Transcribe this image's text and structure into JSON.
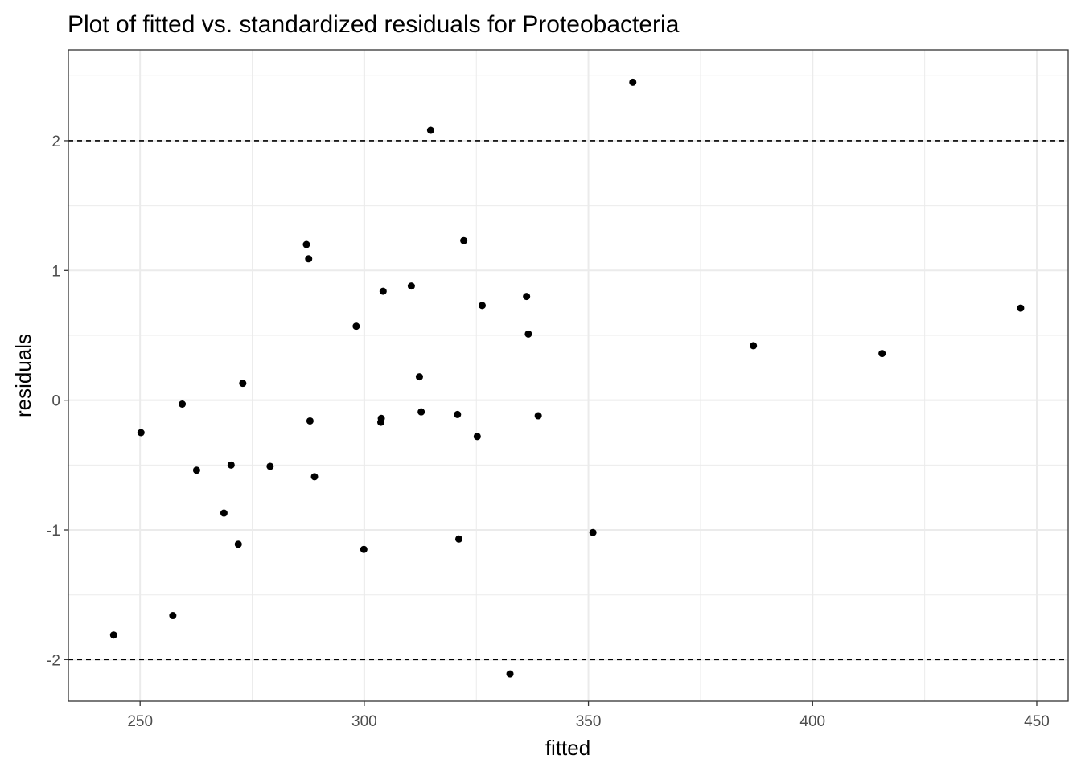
{
  "chart_data": {
    "type": "scatter",
    "title": "Plot of fitted vs. standardized residuals for Proteobacteria",
    "xlabel": "fitted",
    "ylabel": "residuals",
    "xlim": [
      234,
      457
    ],
    "ylim": [
      -2.32,
      2.7
    ],
    "x_ticks": [
      250,
      300,
      350,
      400,
      450
    ],
    "x_tick_labels": [
      "250",
      "300",
      "350",
      "400",
      "450"
    ],
    "y_ticks": [
      -2,
      -1,
      0,
      1,
      2
    ],
    "y_tick_labels": [
      "-2",
      "-1",
      "0",
      "1",
      "2"
    ],
    "x_minor_ticks": [
      275,
      325,
      375,
      425
    ],
    "y_minor_ticks": [
      -1.5,
      -0.5,
      0.5,
      1.5,
      2.5
    ],
    "grid": true,
    "reference_lines": [
      2,
      -2
    ],
    "colors": {
      "points": "#000000",
      "grid": "#ebebeb",
      "reference_lines": "#000000",
      "panel_border": "#333333"
    },
    "points": [
      {
        "x": 244.1,
        "y": -1.81
      },
      {
        "x": 250.2,
        "y": -0.25
      },
      {
        "x": 257.3,
        "y": -1.66
      },
      {
        "x": 259.4,
        "y": -0.03
      },
      {
        "x": 262.6,
        "y": -0.54
      },
      {
        "x": 268.7,
        "y": -0.87
      },
      {
        "x": 270.3,
        "y": -0.5
      },
      {
        "x": 271.9,
        "y": -1.11
      },
      {
        "x": 272.9,
        "y": 0.13
      },
      {
        "x": 279.0,
        "y": -0.51
      },
      {
        "x": 287.1,
        "y": 1.2
      },
      {
        "x": 287.6,
        "y": 1.09
      },
      {
        "x": 287.9,
        "y": -0.16
      },
      {
        "x": 288.9,
        "y": -0.59
      },
      {
        "x": 298.2,
        "y": 0.57
      },
      {
        "x": 299.9,
        "y": -1.15
      },
      {
        "x": 303.7,
        "y": -0.17
      },
      {
        "x": 303.8,
        "y": -0.14
      },
      {
        "x": 304.2,
        "y": 0.84
      },
      {
        "x": 310.5,
        "y": 0.88
      },
      {
        "x": 312.3,
        "y": 0.18
      },
      {
        "x": 312.7,
        "y": -0.09
      },
      {
        "x": 314.8,
        "y": 2.08
      },
      {
        "x": 320.8,
        "y": -0.11
      },
      {
        "x": 321.1,
        "y": -1.07
      },
      {
        "x": 322.2,
        "y": 1.23
      },
      {
        "x": 325.2,
        "y": -0.28
      },
      {
        "x": 326.3,
        "y": 0.73
      },
      {
        "x": 332.5,
        "y": -2.11
      },
      {
        "x": 336.2,
        "y": 0.8
      },
      {
        "x": 336.6,
        "y": 0.51
      },
      {
        "x": 338.8,
        "y": -0.12
      },
      {
        "x": 351.0,
        "y": -1.02
      },
      {
        "x": 359.9,
        "y": 2.45
      },
      {
        "x": 386.8,
        "y": 0.42
      },
      {
        "x": 415.5,
        "y": 0.36
      },
      {
        "x": 446.4,
        "y": 0.71
      }
    ]
  }
}
